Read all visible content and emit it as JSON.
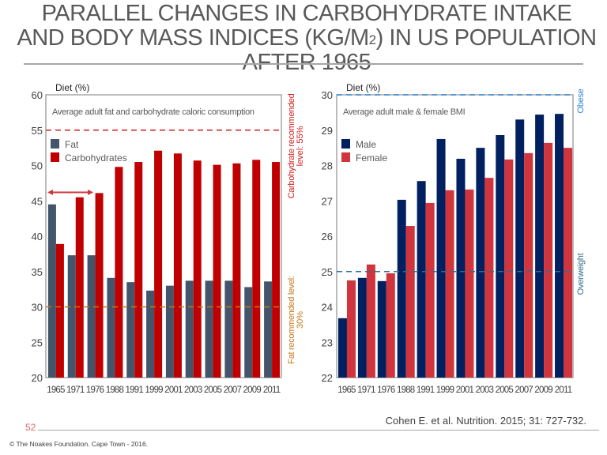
{
  "slide": {
    "title_part1": "PARALLEL CHANGES IN CARBOHYDRATE INTAKE AND BODY MASS INDICES (KG/M",
    "title_sup": "2",
    "title_part2": ") IN US POPULATION AFTER 1965",
    "page_number": "52",
    "citation": "Cohen E. et al. Nutrition. 2015; 31: 727-732.",
    "copyright": "© The Noakes Foundation. Cape Town - 2016."
  },
  "colors": {
    "fat": "#44546a",
    "carbohydrates": "#c00000",
    "male": "#002060",
    "female": "#d0343d",
    "carb_ref": "#d12020",
    "fat_ref": "#c5781a",
    "obese_ref": "#2e86d6",
    "overweight_ref": "#2f6e8f",
    "axis_text": "#404040",
    "frame": "#a6a6a6"
  },
  "chart_data": [
    {
      "type": "bar",
      "title": "Average adult fat and carbohydrate caloric consumption",
      "ylabel": "Diet (%)",
      "xlabel": "",
      "ylim": [
        20,
        60
      ],
      "yticks": [
        20,
        25,
        30,
        35,
        40,
        45,
        50,
        55,
        60
      ],
      "grid": false,
      "legend_position": "top-left",
      "categories": [
        "1965",
        "1971",
        "1976",
        "1988",
        "1991",
        "1999",
        "2001",
        "2003",
        "2005",
        "2007",
        "2009",
        "2011"
      ],
      "series": [
        {
          "name": "Fat",
          "values": [
            44.5,
            37.3,
            37.3,
            34.1,
            33.5,
            32.3,
            33.0,
            33.7,
            33.7,
            33.7,
            32.8,
            33.6
          ]
        },
        {
          "name": "Carbohydrates",
          "values": [
            38.9,
            45.5,
            46.1,
            49.8,
            50.5,
            52.1,
            51.7,
            50.7,
            50.1,
            50.3,
            50.8,
            50.5
          ]
        }
      ],
      "reference_lines": [
        {
          "value": 55,
          "label_line1": "Carbohydrate recommended",
          "label_line2": "level: 55%",
          "color_key": "carb_ref"
        },
        {
          "value": 30,
          "label_line1": "Fat recommended level:",
          "label_line2": "30%",
          "color_key": "fat_ref"
        }
      ],
      "annotation": {
        "type": "double-arrow",
        "from_category": "1965",
        "to_category": "1976",
        "value": 46.2
      }
    },
    {
      "type": "bar",
      "title": "Average adult male & female BMI",
      "ylabel": "Diet (%)",
      "xlabel": "",
      "ylim": [
        22,
        30
      ],
      "yticks": [
        22,
        23,
        24,
        25,
        26,
        27,
        28,
        29,
        30
      ],
      "grid": false,
      "legend_position": "top-left",
      "categories": [
        "1965",
        "1971",
        "1976",
        "1988",
        "1991",
        "1999",
        "2001",
        "2003",
        "2005",
        "2007",
        "2009",
        "2011"
      ],
      "series": [
        {
          "name": "Male",
          "values": [
            23.68,
            24.82,
            24.73,
            27.03,
            27.56,
            28.75,
            28.19,
            28.5,
            28.86,
            29.3,
            29.44,
            29.46
          ]
        },
        {
          "name": "Female",
          "values": [
            24.75,
            25.2,
            24.95,
            26.29,
            26.94,
            27.3,
            27.32,
            27.65,
            28.17,
            28.35,
            28.64,
            28.5
          ]
        }
      ],
      "reference_lines": [
        {
          "value": 30,
          "label_line1": "Obese",
          "label_line2": "",
          "color_key": "obese_ref"
        },
        {
          "value": 25,
          "label_line1": "Overweight",
          "label_line2": "",
          "color_key": "overweight_ref"
        }
      ]
    }
  ]
}
